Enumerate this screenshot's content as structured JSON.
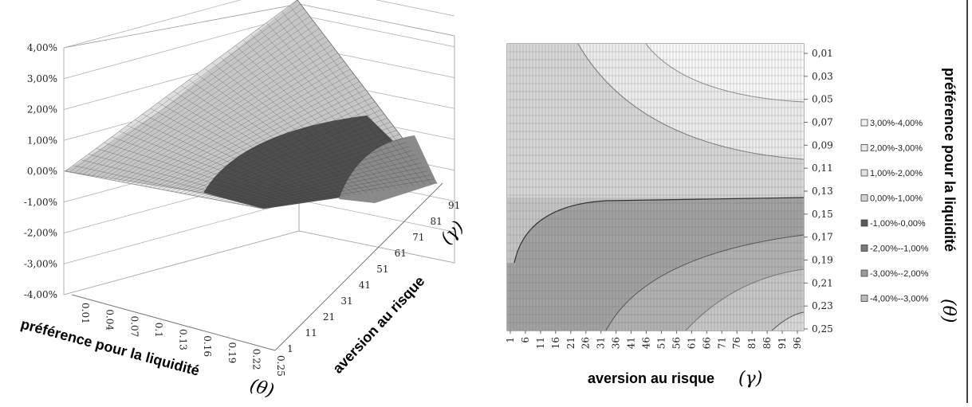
{
  "chart_data": [
    {
      "type": "surface",
      "z_ticks": [
        "4,00%",
        "3,00%",
        "2,00%",
        "1,00%",
        "0,00%",
        "-1,00%",
        "-2,00%",
        "-3,00%",
        "-4,00%"
      ],
      "zlim": [
        -0.04,
        0.04
      ],
      "theta_ticks": [
        "0.01",
        "0.04",
        "0.07",
        "0.1",
        "0.13",
        "0.16",
        "0.19",
        "0.22",
        "0.25"
      ],
      "gamma_ticks": [
        "1",
        "11",
        "21",
        "31",
        "41",
        "51",
        "61",
        "71",
        "81",
        "91"
      ],
      "theta_label": "préférence pour la liquidité",
      "theta_symbol": "(θ)",
      "gamma_label": "aversion au risque",
      "gamma_symbol": "(γ)",
      "grid": true
    },
    {
      "type": "contour",
      "x_ticks": [
        "1",
        "6",
        "11",
        "16",
        "21",
        "26",
        "31",
        "36",
        "41",
        "46",
        "51",
        "56",
        "61",
        "66",
        "71",
        "76",
        "81",
        "86",
        "91",
        "96"
      ],
      "y_ticks": [
        "0,01",
        "0,03",
        "0,05",
        "0,07",
        "0,09",
        "0,11",
        "0,13",
        "0,15",
        "0,17",
        "0,19",
        "0,21",
        "0,23",
        "0,25"
      ],
      "x_label": "aversion au risque",
      "x_symbol": "(γ)",
      "y_label": "préférence pour la liquidité",
      "y_symbol": "(θ)",
      "legend_position": "right",
      "legend": [
        {
          "label": "3,00%-4,00%",
          "color": "#f2f2f2"
        },
        {
          "label": "2,00%-3,00%",
          "color": "#eaeaea"
        },
        {
          "label": "1,00%-2,00%",
          "color": "#e2e2e2"
        },
        {
          "label": "0,00%-1,00%",
          "color": "#d4d4d4"
        },
        {
          "label": "-1,00%-0,00%",
          "color": "#5a5a5a"
        },
        {
          "label": "-2,00%--1,00%",
          "color": "#7a7a7a"
        },
        {
          "label": "-3,00%--2,00%",
          "color": "#9a9a9a"
        },
        {
          "label": "-4,00%--3,00%",
          "color": "#bababa"
        }
      ]
    }
  ]
}
